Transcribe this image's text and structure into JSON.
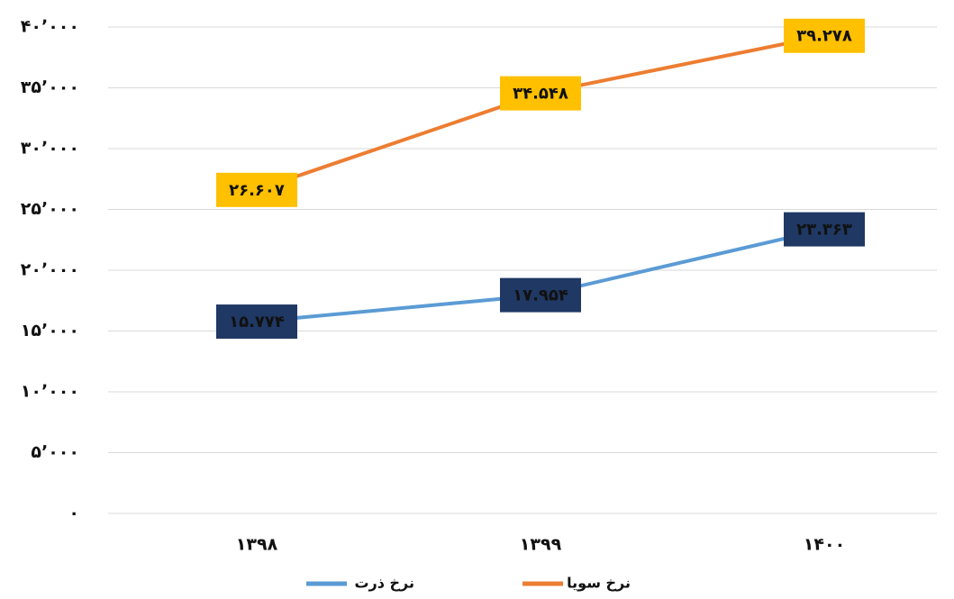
{
  "chart_data": {
    "type": "line",
    "categories": [
      "۱۳۹۸",
      "۱۳۹۹",
      "۱۴۰۰"
    ],
    "series": [
      {
        "name": "نرخ ذرت",
        "color": "#5b9bd5",
        "label_color": "#1f3864",
        "values": [
          15774,
          17954,
          23363
        ],
        "value_labels": [
          "۱۵.۷۷۴",
          "۱۷.۹۵۴",
          "۲۳.۳۶۳"
        ]
      },
      {
        "name": "نرخ سویا",
        "color": "#ed7d31",
        "label_color": "#ffc000",
        "values": [
          26607,
          34548,
          39278
        ],
        "value_labels": [
          "۲۶.۶۰۷",
          "۳۴.۵۴۸",
          "۳۹.۲۷۸"
        ]
      }
    ],
    "ylim": [
      0,
      40000
    ],
    "yticks": [
      {
        "value": 0,
        "label": "۰"
      },
      {
        "value": 5000,
        "label": "۵٬۰۰۰"
      },
      {
        "value": 10000,
        "label": "۱۰٬۰۰۰"
      },
      {
        "value": 15000,
        "label": "۱۵٬۰۰۰"
      },
      {
        "value": 20000,
        "label": "۲۰٬۰۰۰"
      },
      {
        "value": 25000,
        "label": "۲۵٬۰۰۰"
      },
      {
        "value": 30000,
        "label": "۳۰٬۰۰۰"
      },
      {
        "value": 35000,
        "label": "۳۵٬۰۰۰"
      },
      {
        "value": 40000,
        "label": "۴۰٬۰۰۰"
      }
    ],
    "grid": true,
    "legend": "bottom"
  }
}
